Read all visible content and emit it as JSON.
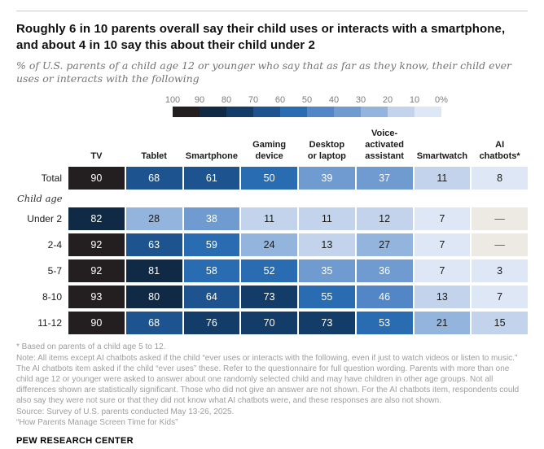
{
  "header": {
    "title": "Roughly 6 in 10 parents overall say their child uses or interacts with a smartphone, and about 4 in 10 say this about their child under 2",
    "subtitle": "% of U.S. parents of a child age 12 or younger who say that as far as they know, their child ever uses or interacts with the following"
  },
  "chart_data": {
    "type": "heatmap",
    "unit": "%",
    "columns": [
      "TV",
      "Tablet",
      "Smartphone",
      "Gaming\ndevice",
      "Desktop\nor laptop",
      "Voice-\nactivated\nassistant",
      "Smartwatch",
      "AI\nchatbots*"
    ],
    "group_label": "Child age",
    "rows": [
      {
        "label": "Total",
        "group": null,
        "values": [
          90,
          68,
          61,
          50,
          39,
          37,
          11,
          8
        ]
      },
      {
        "label": "Under 2",
        "group": "Child age",
        "values": [
          82,
          28,
          38,
          11,
          11,
          12,
          7,
          null
        ]
      },
      {
        "label": "2-4",
        "group": "Child age",
        "values": [
          92,
          63,
          59,
          24,
          13,
          27,
          7,
          null
        ]
      },
      {
        "label": "5-7",
        "group": "Child age",
        "values": [
          92,
          81,
          58,
          52,
          35,
          36,
          7,
          3
        ]
      },
      {
        "label": "8-10",
        "group": "Child age",
        "values": [
          93,
          80,
          64,
          73,
          55,
          46,
          13,
          7
        ]
      },
      {
        "label": "11-12",
        "group": "Child age",
        "values": [
          90,
          68,
          76,
          70,
          73,
          53,
          21,
          15
        ]
      }
    ],
    "no_data_symbol": "—",
    "scale": {
      "min": 0,
      "max": 100,
      "ticks": [
        "100",
        "90",
        "80",
        "70",
        "60",
        "50",
        "40",
        "30",
        "20",
        "10",
        "0%"
      ],
      "bin_colors_low_to_high": [
        "#DDE7F5",
        "#C2D3EB",
        "#93B5DD",
        "#6F9BD0",
        "#5286C6",
        "#2A6CB2",
        "#1D548F",
        "#143C68",
        "#102A45",
        "#231F20"
      ],
      "no_data_color": "#ECEAE2",
      "no_data_text_color": "#555555",
      "text_light": "#FFFFFF",
      "text_dark": "#1A1A1A",
      "white_text_threshold": 30
    }
  },
  "footnotes": {
    "star": "* Based on parents of a child age 5 to 12.",
    "note": "Note: All items except AI chatbots asked if the child “ever uses or interacts with the following, even if just to watch videos or listen to music.” The AI chatbots item asked if the child “ever uses” these. Refer to the questionnaire for full question wording. Parents with more than one child age 12 or younger were asked to answer about one randomly selected child and may have children in other age groups. Not all differences shown are statistically significant. Those who did not give an answer are not shown. For the AI chatbots item, respondents could also say they were not sure or that they did not know what AI chatbots were, and these responses are also not shown.",
    "source": "Source: Survey of U.S. parents conducted May 13-26, 2025.",
    "report": "“How Parents Manage Screen Time for Kids”"
  },
  "footer": {
    "brand": "PEW RESEARCH CENTER"
  }
}
